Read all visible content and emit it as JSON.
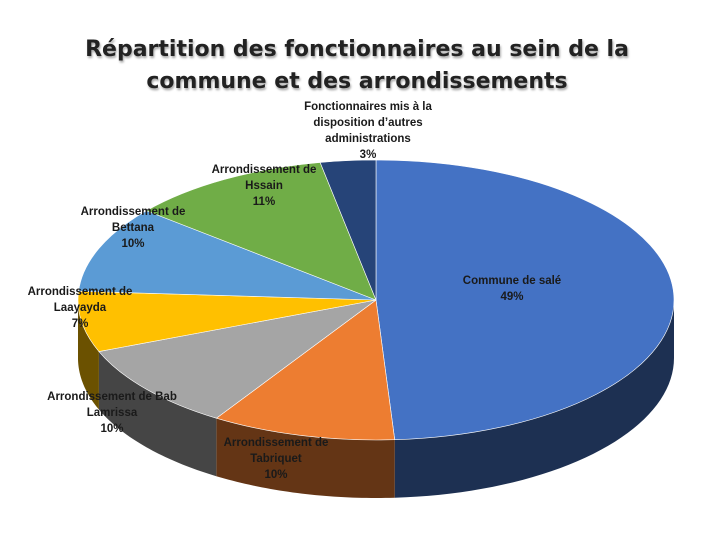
{
  "chart_data": {
    "type": "pie",
    "title_lines": [
      "Répartition des fonctionnaires au sein de la",
      "commune et des arrondissements"
    ],
    "slices": [
      {
        "label_lines": [
          "Commune de salé"
        ],
        "value": 49,
        "pct": "49%",
        "color": "#4472C4"
      },
      {
        "label_lines": [
          "Arrondissement de",
          "Tabriquet"
        ],
        "value": 10,
        "pct": "10%",
        "color": "#ED7D31"
      },
      {
        "label_lines": [
          "Arrondissement de Bab",
          "Lamrissa"
        ],
        "value": 10,
        "pct": "10%",
        "color": "#A5A5A5"
      },
      {
        "label_lines": [
          "Arrondissement de",
          "Laayayda"
        ],
        "value": 7,
        "pct": "7%",
        "color": "#FFC000"
      },
      {
        "label_lines": [
          "Arrondissement de",
          "Bettana"
        ],
        "value": 10,
        "pct": "10%",
        "color": "#5B9BD5"
      },
      {
        "label_lines": [
          "Arrondissement de",
          "Hssain"
        ],
        "value": 11,
        "pct": "11%",
        "color": "#70AD47"
      },
      {
        "label_lines": [
          "Fonctionnaires mis à la",
          "disposition d’autres",
          "administrations"
        ],
        "value": 3,
        "pct": "3%",
        "color": "#264478"
      }
    ]
  }
}
